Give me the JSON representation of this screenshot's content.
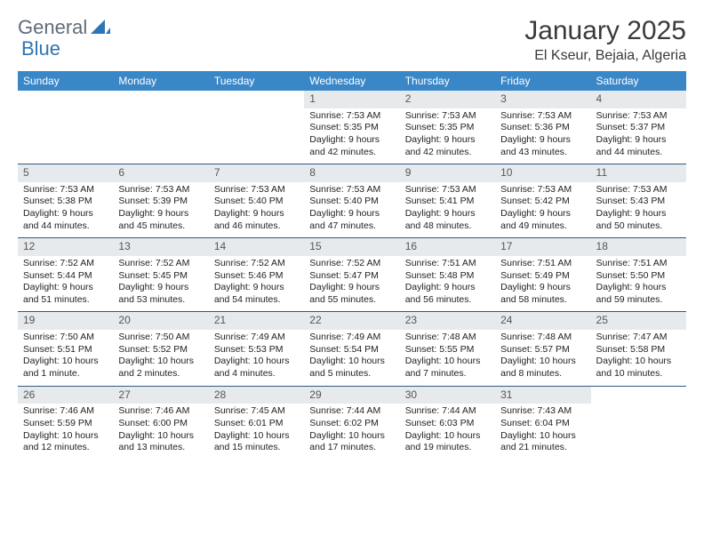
{
  "logo": {
    "word1": "General",
    "word2": "Blue"
  },
  "title": "January 2025",
  "location": "El Kseur, Bejaia, Algeria",
  "colors": {
    "header_bg": "#3a87c8",
    "header_fg": "#ffffff",
    "daynum_bg": "#e7eaed",
    "row_border": "#2f5a85",
    "logo_gray": "#5f6b78",
    "logo_blue": "#2f74b5"
  },
  "dayHeaders": [
    "Sunday",
    "Monday",
    "Tuesday",
    "Wednesday",
    "Thursday",
    "Friday",
    "Saturday"
  ],
  "weeks": [
    [
      null,
      null,
      null,
      {
        "n": "1",
        "sr": "7:53 AM",
        "ss": "5:35 PM",
        "dl": "9 hours and 42 minutes."
      },
      {
        "n": "2",
        "sr": "7:53 AM",
        "ss": "5:35 PM",
        "dl": "9 hours and 42 minutes."
      },
      {
        "n": "3",
        "sr": "7:53 AM",
        "ss": "5:36 PM",
        "dl": "9 hours and 43 minutes."
      },
      {
        "n": "4",
        "sr": "7:53 AM",
        "ss": "5:37 PM",
        "dl": "9 hours and 44 minutes."
      }
    ],
    [
      {
        "n": "5",
        "sr": "7:53 AM",
        "ss": "5:38 PM",
        "dl": "9 hours and 44 minutes."
      },
      {
        "n": "6",
        "sr": "7:53 AM",
        "ss": "5:39 PM",
        "dl": "9 hours and 45 minutes."
      },
      {
        "n": "7",
        "sr": "7:53 AM",
        "ss": "5:40 PM",
        "dl": "9 hours and 46 minutes."
      },
      {
        "n": "8",
        "sr": "7:53 AM",
        "ss": "5:40 PM",
        "dl": "9 hours and 47 minutes."
      },
      {
        "n": "9",
        "sr": "7:53 AM",
        "ss": "5:41 PM",
        "dl": "9 hours and 48 minutes."
      },
      {
        "n": "10",
        "sr": "7:53 AM",
        "ss": "5:42 PM",
        "dl": "9 hours and 49 minutes."
      },
      {
        "n": "11",
        "sr": "7:53 AM",
        "ss": "5:43 PM",
        "dl": "9 hours and 50 minutes."
      }
    ],
    [
      {
        "n": "12",
        "sr": "7:52 AM",
        "ss": "5:44 PM",
        "dl": "9 hours and 51 minutes."
      },
      {
        "n": "13",
        "sr": "7:52 AM",
        "ss": "5:45 PM",
        "dl": "9 hours and 53 minutes."
      },
      {
        "n": "14",
        "sr": "7:52 AM",
        "ss": "5:46 PM",
        "dl": "9 hours and 54 minutes."
      },
      {
        "n": "15",
        "sr": "7:52 AM",
        "ss": "5:47 PM",
        "dl": "9 hours and 55 minutes."
      },
      {
        "n": "16",
        "sr": "7:51 AM",
        "ss": "5:48 PM",
        "dl": "9 hours and 56 minutes."
      },
      {
        "n": "17",
        "sr": "7:51 AM",
        "ss": "5:49 PM",
        "dl": "9 hours and 58 minutes."
      },
      {
        "n": "18",
        "sr": "7:51 AM",
        "ss": "5:50 PM",
        "dl": "9 hours and 59 minutes."
      }
    ],
    [
      {
        "n": "19",
        "sr": "7:50 AM",
        "ss": "5:51 PM",
        "dl": "10 hours and 1 minute."
      },
      {
        "n": "20",
        "sr": "7:50 AM",
        "ss": "5:52 PM",
        "dl": "10 hours and 2 minutes."
      },
      {
        "n": "21",
        "sr": "7:49 AM",
        "ss": "5:53 PM",
        "dl": "10 hours and 4 minutes."
      },
      {
        "n": "22",
        "sr": "7:49 AM",
        "ss": "5:54 PM",
        "dl": "10 hours and 5 minutes."
      },
      {
        "n": "23",
        "sr": "7:48 AM",
        "ss": "5:55 PM",
        "dl": "10 hours and 7 minutes."
      },
      {
        "n": "24",
        "sr": "7:48 AM",
        "ss": "5:57 PM",
        "dl": "10 hours and 8 minutes."
      },
      {
        "n": "25",
        "sr": "7:47 AM",
        "ss": "5:58 PM",
        "dl": "10 hours and 10 minutes."
      }
    ],
    [
      {
        "n": "26",
        "sr": "7:46 AM",
        "ss": "5:59 PM",
        "dl": "10 hours and 12 minutes."
      },
      {
        "n": "27",
        "sr": "7:46 AM",
        "ss": "6:00 PM",
        "dl": "10 hours and 13 minutes."
      },
      {
        "n": "28",
        "sr": "7:45 AM",
        "ss": "6:01 PM",
        "dl": "10 hours and 15 minutes."
      },
      {
        "n": "29",
        "sr": "7:44 AM",
        "ss": "6:02 PM",
        "dl": "10 hours and 17 minutes."
      },
      {
        "n": "30",
        "sr": "7:44 AM",
        "ss": "6:03 PM",
        "dl": "10 hours and 19 minutes."
      },
      {
        "n": "31",
        "sr": "7:43 AM",
        "ss": "6:04 PM",
        "dl": "10 hours and 21 minutes."
      },
      null
    ]
  ],
  "labels": {
    "sunrise": "Sunrise:",
    "sunset": "Sunset:",
    "daylight": "Daylight:"
  }
}
